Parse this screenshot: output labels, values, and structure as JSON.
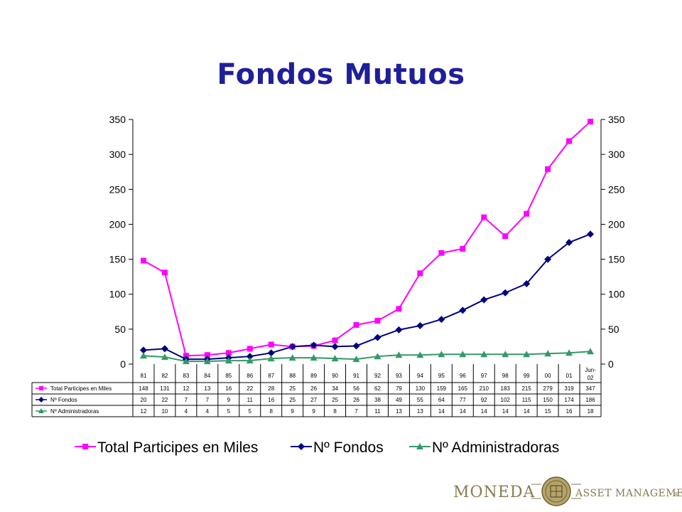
{
  "title": "Fondos Mutuos",
  "chart_data": {
    "type": "line",
    "categories": [
      "81",
      "82",
      "83",
      "84",
      "85",
      "86",
      "87",
      "88",
      "89",
      "90",
      "91",
      "92",
      "93",
      "94",
      "95",
      "96",
      "97",
      "98",
      "99",
      "00",
      "01",
      "Jun-02"
    ],
    "series": [
      {
        "name": "Total Participes en Miles",
        "color": "#ff00ff",
        "marker": "square",
        "values": [
          148,
          131,
          12,
          13,
          16,
          22,
          28,
          25,
          26,
          34,
          56,
          62,
          79,
          130,
          159,
          165,
          210,
          183,
          215,
          279,
          319,
          347
        ]
      },
      {
        "name": "Nº Fondos",
        "color": "#000080",
        "marker": "diamond",
        "values": [
          20,
          22,
          7,
          7,
          9,
          11,
          16,
          25,
          27,
          25,
          26,
          38,
          49,
          55,
          64,
          77,
          92,
          102,
          115,
          150,
          174,
          186
        ]
      },
      {
        "name": "Nº Administradoras",
        "color": "#339966",
        "marker": "triangle",
        "values": [
          12,
          10,
          4,
          4,
          5,
          5,
          8,
          9,
          9,
          8,
          7,
          11,
          13,
          13,
          14,
          14,
          14,
          14,
          14,
          15,
          16,
          18
        ]
      }
    ],
    "ylim": [
      0,
      350
    ],
    "yticks": [
      0,
      50,
      100,
      150,
      200,
      250,
      300,
      350
    ],
    "secondary_axis": {
      "ylim": [
        0,
        350
      ],
      "yticks": [
        0,
        50,
        100,
        150,
        200,
        250,
        300,
        350
      ]
    },
    "grid": false,
    "data_table": true,
    "legend_position": "bottom"
  },
  "logo": {
    "left_text": "MONEDA",
    "right_text": "ASSET MANAGEMENT",
    "registered_mark": "®",
    "color": "#8a7a52"
  }
}
